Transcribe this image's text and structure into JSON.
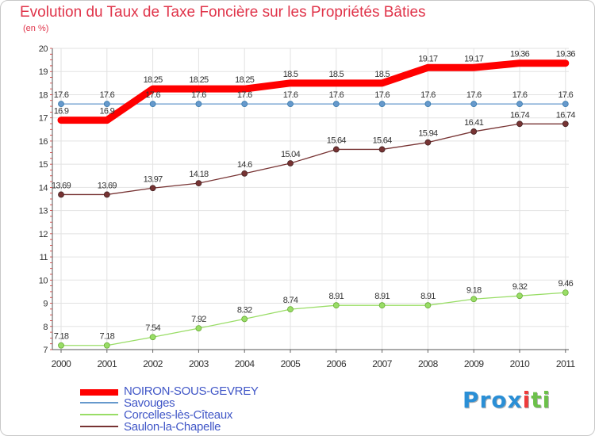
{
  "chart_data": {
    "type": "line",
    "title": "Evolution du Taux de Taxe Foncière sur les Propriétés Bâties",
    "subtitle": "(en %)",
    "x": [
      "2000",
      "2001",
      "2002",
      "2003",
      "2004",
      "2005",
      "2006",
      "2007",
      "2008",
      "2009",
      "2010",
      "2011"
    ],
    "ylim": [
      7,
      20
    ],
    "yticks": [
      7,
      8,
      9,
      10,
      11,
      12,
      13,
      14,
      15,
      16,
      17,
      18,
      19,
      20
    ],
    "grid": true,
    "series": [
      {
        "name": "NOIRON-SOUS-GEVREY",
        "color": "#ff0000",
        "width": "thick",
        "markers": false,
        "values": [
          16.9,
          16.9,
          18.25,
          18.25,
          18.25,
          18.5,
          18.5,
          18.5,
          19.17,
          19.17,
          19.36,
          19.36
        ],
        "labels": [
          "16.9",
          "16.9",
          "18.25",
          "18.25",
          "18.25",
          "18.5",
          "18.5",
          "18.5",
          "19.17",
          "19.17",
          "19.36",
          "19.36"
        ]
      },
      {
        "name": "Savouges",
        "color": "#6699cc",
        "width": "thin",
        "markers": true,
        "values": [
          17.6,
          17.6,
          17.6,
          17.6,
          17.6,
          17.6,
          17.6,
          17.6,
          17.6,
          17.6,
          17.6,
          17.6
        ],
        "labels": [
          "17.6",
          "17.6",
          "17.6",
          "17.6",
          "17.6",
          "17.6",
          "17.6",
          "17.6",
          "17.6",
          "17.6",
          "17.6",
          "17.6"
        ]
      },
      {
        "name": "Corcelles-lès-Cîteaux",
        "color": "#99dd66",
        "width": "thin",
        "markers": true,
        "values": [
          7.18,
          7.18,
          7.54,
          7.92,
          8.32,
          8.74,
          8.91,
          8.91,
          8.91,
          9.18,
          9.32,
          9.46
        ],
        "labels": [
          "7.18",
          "7.18",
          "7.54",
          "7.92",
          "8.32",
          "8.74",
          "8.91",
          "8.91",
          "8.91",
          "9.18",
          "9.32",
          "9.46"
        ]
      },
      {
        "name": "Saulon-la-Chapelle",
        "color": "#773333",
        "width": "thin",
        "markers": true,
        "values": [
          13.69,
          13.69,
          13.97,
          14.18,
          14.6,
          15.04,
          15.64,
          15.64,
          15.94,
          16.41,
          16.74,
          16.74
        ],
        "labels": [
          "13.69",
          "13.69",
          "13.97",
          "14.18",
          "14.6",
          "15.04",
          "15.64",
          "15.64",
          "15.94",
          "16.41",
          "16.74",
          "16.74"
        ]
      }
    ]
  },
  "logo": {
    "text": "Prox",
    "accent": "i",
    "tail": "ti"
  }
}
